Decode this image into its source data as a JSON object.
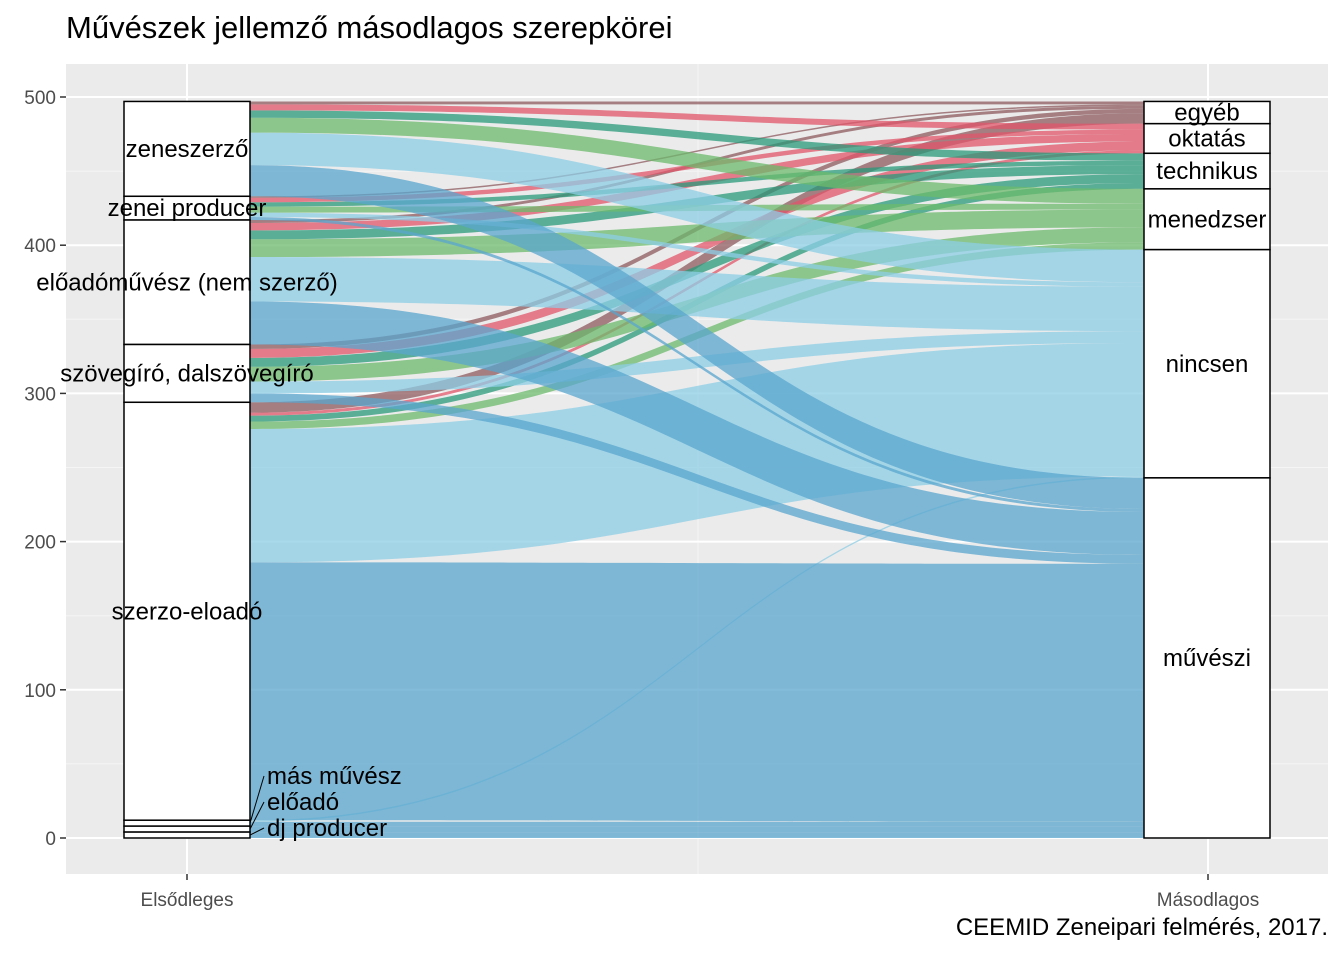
{
  "chart_data": {
    "type": "alluvial",
    "title": "Művészek jellemző másodlagos szerepkörei",
    "caption": "CEEMID Zeneipari felmérés, 2017.",
    "axes": [
      "Elsődleges",
      "Másodlagos"
    ],
    "ylim": [
      -20,
      525
    ],
    "yticks": [
      0,
      100,
      200,
      300,
      400,
      500
    ],
    "left_strata": [
      "zeneszerző",
      "zenei producer",
      "előadóművész (nem szerző)",
      "szövegíró, dalszövegíró",
      "szerzo-eloadó",
      "más művész",
      "előadó",
      "dj producer"
    ],
    "right_strata": [
      "egyéb",
      "oktatás",
      "technikus",
      "menedzser",
      "nincsen",
      "művészi"
    ],
    "colors": {
      "egyéb": "#8c5a5e",
      "oktatás": "#e0566a",
      "technikus": "#2a9a7a",
      "menedzser": "#6cb96c",
      "nincsen": "#8ccde6",
      "művészi": "#5aa6cd"
    },
    "flows": [
      {
        "from": "zeneszerző",
        "to": "egyéb",
        "value": 2
      },
      {
        "from": "zeneszerző",
        "to": "oktatás",
        "value": 4
      },
      {
        "from": "zeneszerző",
        "to": "technikus",
        "value": 5
      },
      {
        "from": "zeneszerző",
        "to": "menedzser",
        "value": 10
      },
      {
        "from": "zeneszerző",
        "to": "nincsen",
        "value": 22
      },
      {
        "from": "zeneszerző",
        "to": "művészi",
        "value": 21
      },
      {
        "from": "zenei producer",
        "to": "egyéb",
        "value": 1
      },
      {
        "from": "zenei producer",
        "to": "oktatás",
        "value": 3
      },
      {
        "from": "zenei producer",
        "to": "technikus",
        "value": 3
      },
      {
        "from": "zenei producer",
        "to": "menedzser",
        "value": 4
      },
      {
        "from": "zenei producer",
        "to": "nincsen",
        "value": 3
      },
      {
        "from": "zenei producer",
        "to": "művészi",
        "value": 2
      },
      {
        "from": "előadóművész (nem szerző)",
        "to": "egyéb",
        "value": 2
      },
      {
        "from": "előadóművész (nem szerző)",
        "to": "oktatás",
        "value": 5
      },
      {
        "from": "előadóművész (nem szerző)",
        "to": "technikus",
        "value": 6
      },
      {
        "from": "előadóművész (nem szerző)",
        "to": "menedzser",
        "value": 12
      },
      {
        "from": "előadóművész (nem szerző)",
        "to": "nincsen",
        "value": 30
      },
      {
        "from": "előadóművész (nem szerző)",
        "to": "művészi",
        "value": 29
      },
      {
        "from": "szövegíró, dalszövegíró",
        "to": "egyéb",
        "value": 3
      },
      {
        "from": "szövegíró, dalszövegíró",
        "to": "oktatás",
        "value": 6
      },
      {
        "from": "szövegíró, dalszövegíró",
        "to": "technikus",
        "value": 6
      },
      {
        "from": "szövegíró, dalszövegíró",
        "to": "menedzser",
        "value": 10
      },
      {
        "from": "szövegíró, dalszövegíró",
        "to": "nincsen",
        "value": 8
      },
      {
        "from": "szövegíró, dalszövegíró",
        "to": "művészi",
        "value": 6
      },
      {
        "from": "szerzo-eloadó",
        "to": "egyéb",
        "value": 7
      },
      {
        "from": "szerzo-eloadó",
        "to": "oktatás",
        "value": 2
      },
      {
        "from": "szerzo-eloadó",
        "to": "technikus",
        "value": 4
      },
      {
        "from": "szerzo-eloadó",
        "to": "menedzser",
        "value": 5
      },
      {
        "from": "szerzo-eloadó",
        "to": "nincsen",
        "value": 90
      },
      {
        "from": "szerzo-eloadó",
        "to": "művészi",
        "value": 174
      },
      {
        "from": "más művész",
        "to": "nincsen",
        "value": 1
      },
      {
        "from": "más művész",
        "to": "művészi",
        "value": 3
      },
      {
        "from": "előadó",
        "to": "művészi",
        "value": 4
      },
      {
        "from": "dj producer",
        "to": "művészi",
        "value": 4
      }
    ]
  }
}
